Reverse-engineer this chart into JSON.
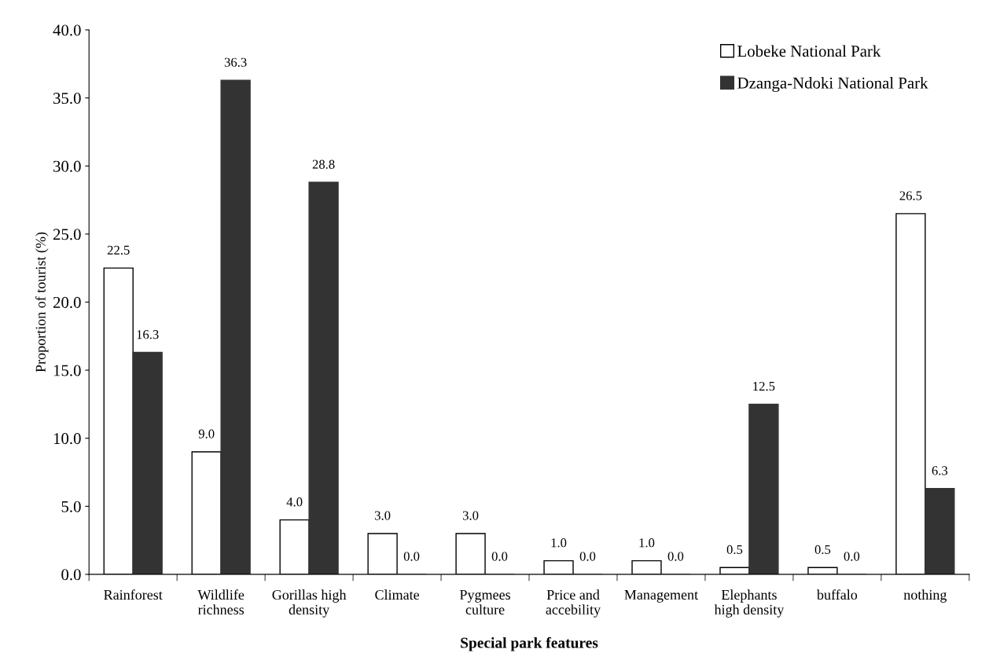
{
  "chart_data": {
    "type": "bar",
    "xlabel": "Special park features",
    "ylabel": "Proportion of tourist (%)",
    "categories": [
      "Rainforest",
      "Wildlife\nrichness",
      "Gorillas high\ndensity",
      "Climate",
      "Pygmees\nculture",
      "Price and\naccebility",
      "Management",
      "Elephants\nhigh density",
      "buffalo",
      "nothing"
    ],
    "series": [
      {
        "name": "Lobeke National Park",
        "color": "#ffffff",
        "values": [
          22.5,
          9.0,
          4.0,
          3.0,
          3.0,
          1.0,
          1.0,
          0.5,
          0.5,
          26.5
        ],
        "value_labels": [
          "22.5",
          "9.0",
          "4.0",
          "3.0",
          "3.0",
          "1.0",
          "1.0",
          "0.5",
          "0.5",
          "26.5"
        ]
      },
      {
        "name": "Dzanga-Ndoki National Park",
        "color": "#333333",
        "values": [
          16.3,
          36.3,
          28.8,
          0.0,
          0.0,
          0.0,
          0.0,
          12.5,
          0.0,
          6.3
        ],
        "value_labels": [
          "16.3",
          "36.3",
          "28.8",
          "0.0",
          "0.0",
          "0.0",
          "0.0",
          "12.5",
          "0.0",
          "6.3"
        ]
      }
    ],
    "ylim": [
      0,
      40
    ],
    "yticks": [
      {
        "value": 0,
        "label": "0.0"
      },
      {
        "value": 5,
        "label": "5.0"
      },
      {
        "value": 10,
        "label": "10.0"
      },
      {
        "value": 15,
        "label": "15.0"
      },
      {
        "value": 20,
        "label": "20.0"
      },
      {
        "value": 25,
        "label": "25.0"
      },
      {
        "value": 30,
        "label": "30.0"
      },
      {
        "value": 35,
        "label": "35.0"
      },
      {
        "value": 40,
        "label": "40.0"
      }
    ],
    "grid": false,
    "legend": "top right"
  }
}
